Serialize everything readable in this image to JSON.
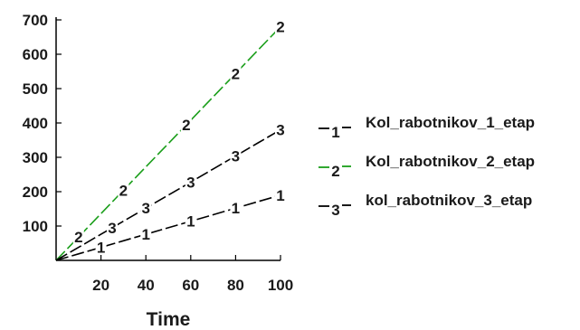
{
  "chart_data": {
    "type": "line",
    "title": "",
    "xlabel": "Time",
    "ylabel": "",
    "xlim": [
      0,
      100
    ],
    "ylim": [
      0,
      700
    ],
    "x_ticks": [
      20,
      40,
      60,
      80,
      100
    ],
    "y_ticks": [
      100,
      200,
      300,
      400,
      500,
      600,
      700
    ],
    "x": [
      0,
      10,
      20,
      30,
      40,
      50,
      60,
      70,
      80,
      90,
      100
    ],
    "grid": false,
    "legend_position": "right",
    "series": [
      {
        "name": "Kol_rabotnikov_1_etap",
        "marker": "1",
        "color": "#000000",
        "values": [
          0,
          19,
          38,
          57,
          76,
          95,
          114,
          133,
          152,
          171,
          190
        ],
        "label_x": [
          20,
          40,
          60,
          80,
          100
        ]
      },
      {
        "name": "Kol_rabotnikov_2_etap",
        "marker": "2",
        "color": "#1a9e1a",
        "values": [
          0,
          68,
          136,
          204,
          272,
          340,
          408,
          476,
          544,
          612,
          680
        ],
        "label_x": [
          10,
          30,
          58,
          80,
          100
        ]
      },
      {
        "name": "kol_rabotnikov_3_etap",
        "marker": "3",
        "color": "#000000",
        "values": [
          0,
          38,
          76,
          114,
          152,
          190,
          228,
          266,
          304,
          342,
          380
        ],
        "label_x": [
          25,
          40,
          60,
          80,
          100
        ]
      }
    ]
  }
}
